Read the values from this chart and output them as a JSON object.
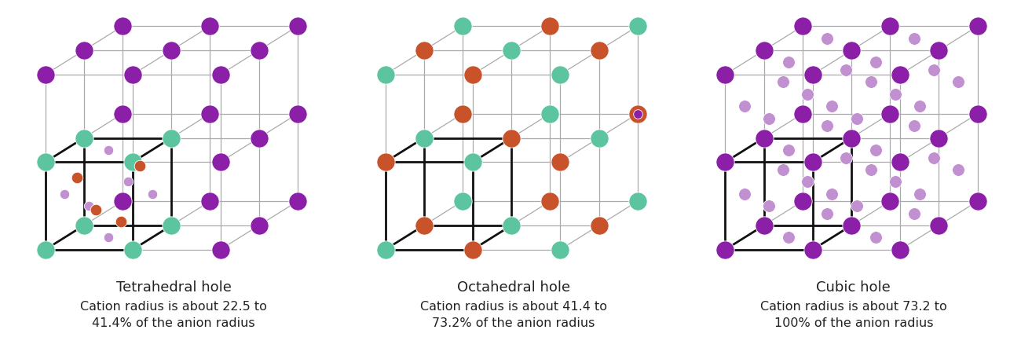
{
  "background_color": "#ffffff",
  "title1": "Tetrahedral hole",
  "subtitle1": "Cation radius is about 22.5 to\n41.4% of the anion radius",
  "title2": "Octahedral hole",
  "subtitle2": "Cation radius is about 41.4 to\n73.2% of the anion radius",
  "title3": "Cubic hole",
  "subtitle3": "Cation radius is about 73.2 to\n100% of the anion radius",
  "purple": "#8B1FA8",
  "teal": "#5DC4A0",
  "orange": "#C8522A",
  "light_purple": "#C090D0",
  "text_color": "#222222",
  "title_fontsize": 13,
  "subtitle_fontsize": 11.5,
  "grid_color": "#aaaaaa",
  "highlight_color": "#111111",
  "grid_lw": 0.9,
  "highlight_lw": 2.0,
  "sphere_large": 280,
  "sphere_small_orange": 110,
  "sphere_small_lp": 80,
  "sphere_cubic_lp": 130
}
